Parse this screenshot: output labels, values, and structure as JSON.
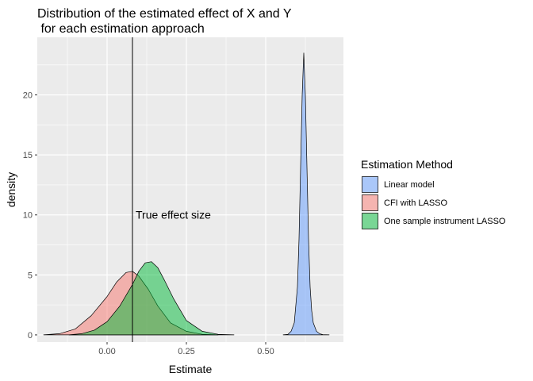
{
  "chart_data": {
    "type": "area",
    "title_lines": [
      "Distribution of the estimated effect of X and Y",
      " for each estimation approach"
    ],
    "xlabel": "Estimate",
    "ylabel": "density",
    "xlim": [
      -0.22,
      0.745
    ],
    "ylim": [
      -0.6,
      24.8
    ],
    "x_ticks": [
      0.0,
      0.25,
      0.5
    ],
    "x_tick_labels": [
      "0.00",
      "0.25",
      "0.50"
    ],
    "y_ticks": [
      0,
      5,
      10,
      15,
      20
    ],
    "y_tick_labels": [
      "0",
      "5",
      "10",
      "15",
      "20"
    ],
    "grid": true,
    "legend": {
      "title": "Estimation Method",
      "position": "right"
    },
    "vline": {
      "x": 0.08
    },
    "annotation": {
      "text": "True effect size",
      "x": 0.085,
      "y": 10
    },
    "series": [
      {
        "name": "Linear model",
        "color": "#619CFF",
        "x": [
          0.555,
          0.57,
          0.58,
          0.59,
          0.6,
          0.605,
          0.61,
          0.615,
          0.62,
          0.625,
          0.63,
          0.635,
          0.64,
          0.645,
          0.65,
          0.66,
          0.67,
          0.68,
          0.7
        ],
        "y": [
          0,
          0.05,
          0.3,
          1.0,
          4.0,
          8.0,
          14.0,
          20.0,
          23.5,
          20.0,
          14.0,
          8.0,
          4.0,
          2.0,
          1.0,
          0.3,
          0.1,
          0.02,
          0
        ]
      },
      {
        "name": "CFI with LASSO",
        "color": "#F8766D",
        "x": [
          -0.2,
          -0.15,
          -0.1,
          -0.05,
          0.0,
          0.03,
          0.06,
          0.08,
          0.1,
          0.13,
          0.16,
          0.2,
          0.25,
          0.3,
          0.35
        ],
        "y": [
          0,
          0.1,
          0.5,
          1.6,
          3.2,
          4.4,
          5.2,
          5.3,
          4.9,
          3.8,
          2.4,
          1.0,
          0.3,
          0.05,
          0
        ]
      },
      {
        "name": "One sample instrument LASSO",
        "color": "#00BA38",
        "x": [
          -0.12,
          -0.08,
          -0.04,
          0.0,
          0.04,
          0.08,
          0.1,
          0.12,
          0.14,
          0.16,
          0.18,
          0.21,
          0.25,
          0.3,
          0.35,
          0.4
        ],
        "y": [
          0,
          0.1,
          0.4,
          1.1,
          2.4,
          4.2,
          5.3,
          6.0,
          6.1,
          5.6,
          4.6,
          3.0,
          1.2,
          0.3,
          0.05,
          0
        ]
      }
    ]
  }
}
